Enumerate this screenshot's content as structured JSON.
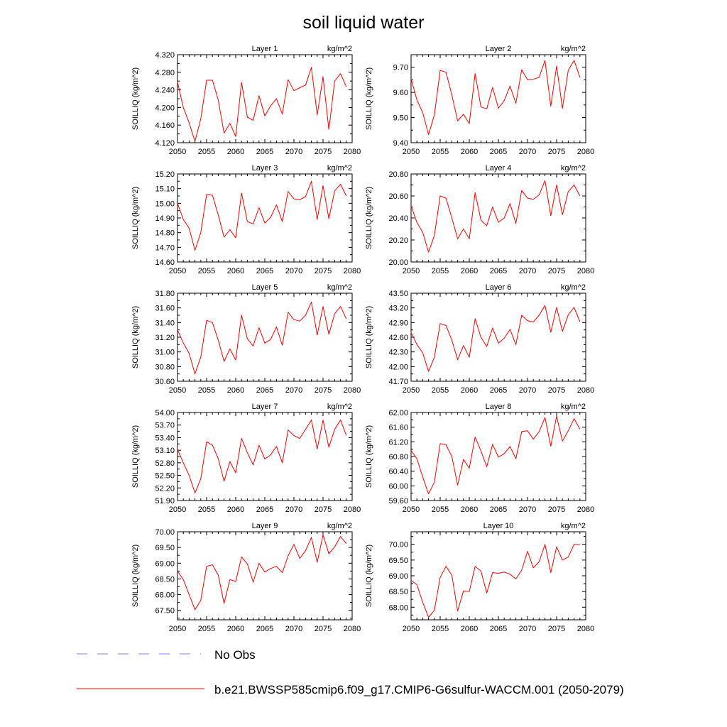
{
  "figure": {
    "title": "soil liquid water"
  },
  "legend": {
    "entries": [
      {
        "label": "No Obs",
        "color": "#7f7fff",
        "style": "dashed"
      },
      {
        "label": "b.e21.BWSSP585cmip6.f09_g17.CMIP6-G6sulfur-WACCM.001 (2050-2079)",
        "color": "#ff0000",
        "style": "solid"
      }
    ]
  },
  "chart_data": [
    {
      "type": "line",
      "title": "Layer 1",
      "units": "kg/m^2",
      "ylabel": "SOILLIQ  (kg/m^2)",
      "xlim": [
        2050,
        2080
      ],
      "ylim": [
        4.12,
        4.32
      ],
      "yticks": [
        "4.120",
        "4.160",
        "4.200",
        "4.240",
        "4.280",
        "4.320"
      ],
      "xticks": [
        "2050",
        "2055",
        "2060",
        "2065",
        "2070",
        "2075",
        "2080"
      ],
      "series": [
        {
          "name": "b.e21.BWSSP585cmip6.f09_g17.CMIP6-G6sulfur-WACCM.001 (2050-2079)",
          "color": "#ff0000",
          "x": [
            2050,
            2051,
            2052,
            2053,
            2054,
            2055,
            2056,
            2057,
            2058,
            2059,
            2060,
            2061,
            2062,
            2063,
            2064,
            2065,
            2066,
            2067,
            2068,
            2069,
            2070,
            2071,
            2072,
            2073,
            2074,
            2075,
            2076,
            2077,
            2078,
            2079
          ],
          "values": [
            4.258,
            4.2,
            4.165,
            4.123,
            4.174,
            4.262,
            4.262,
            4.217,
            4.142,
            4.164,
            4.134,
            4.257,
            4.178,
            4.171,
            4.227,
            4.181,
            4.204,
            4.22,
            4.185,
            4.263,
            4.238,
            4.245,
            4.251,
            4.291,
            4.183,
            4.27,
            4.15,
            4.26,
            4.277,
            4.247
          ]
        }
      ]
    },
    {
      "type": "line",
      "title": "Layer 2",
      "units": "kg/m^2",
      "ylabel": "SOILLIQ  (kg/m^2)",
      "xlim": [
        2050,
        2080
      ],
      "ylim": [
        9.4,
        9.75
      ],
      "yticks": [
        "9.40",
        "9.50",
        "9.60",
        "9.70"
      ],
      "xticks": [
        "2050",
        "2055",
        "2060",
        "2065",
        "2070",
        "2075",
        "2080"
      ],
      "series": [
        {
          "name": "b.e21.BWSSP585cmip6.f09_g17.CMIP6-G6sulfur-WACCM.001 (2050-2079)",
          "color": "#ff0000",
          "x": [
            2050,
            2051,
            2052,
            2053,
            2054,
            2055,
            2056,
            2057,
            2058,
            2059,
            2060,
            2061,
            2062,
            2063,
            2064,
            2065,
            2066,
            2067,
            2068,
            2069,
            2070,
            2071,
            2072,
            2073,
            2074,
            2075,
            2076,
            2077,
            2078,
            2079
          ],
          "values": [
            9.655,
            9.57,
            9.52,
            9.432,
            9.51,
            9.688,
            9.68,
            9.59,
            9.487,
            9.513,
            9.476,
            9.675,
            9.542,
            9.535,
            9.62,
            9.537,
            9.567,
            9.625,
            9.557,
            9.69,
            9.65,
            9.652,
            9.66,
            9.727,
            9.545,
            9.705,
            9.537,
            9.688,
            9.727,
            9.66
          ]
        }
      ]
    },
    {
      "type": "line",
      "title": "Layer 3",
      "units": "kg/m^2",
      "ylabel": "SOILLIQ  (kg/m^2)",
      "xlim": [
        2050,
        2080
      ],
      "ylim": [
        14.6,
        15.2
      ],
      "yticks": [
        "14.60",
        "14.70",
        "14.80",
        "14.90",
        "15.00",
        "15.10",
        "15.20"
      ],
      "xticks": [
        "2050",
        "2055",
        "2060",
        "2065",
        "2070",
        "2075",
        "2080"
      ],
      "series": [
        {
          "name": "b.e21.BWSSP585cmip6.f09_g17.CMIP6-G6sulfur-WACCM.001 (2050-2079)",
          "color": "#ff0000",
          "x": [
            2050,
            2051,
            2052,
            2053,
            2054,
            2055,
            2056,
            2057,
            2058,
            2059,
            2060,
            2061,
            2062,
            2063,
            2064,
            2065,
            2066,
            2067,
            2068,
            2069,
            2070,
            2071,
            2072,
            2073,
            2074,
            2075,
            2076,
            2077,
            2078,
            2079
          ],
          "values": [
            15.0,
            14.89,
            14.83,
            14.68,
            14.8,
            15.06,
            15.055,
            14.92,
            14.77,
            14.82,
            14.765,
            15.07,
            14.875,
            14.86,
            14.97,
            14.865,
            14.905,
            14.99,
            14.875,
            15.08,
            15.03,
            15.025,
            15.045,
            15.15,
            14.89,
            15.12,
            14.895,
            15.085,
            15.13,
            15.05
          ]
        }
      ]
    },
    {
      "type": "line",
      "title": "Layer 4",
      "units": "kg/m^2",
      "ylabel": "SOILLIQ  (kg/m^2)",
      "xlim": [
        2050,
        2080
      ],
      "ylim": [
        20.0,
        20.8
      ],
      "yticks": [
        "20.00",
        "20.20",
        "20.40",
        "20.60",
        "20.80"
      ],
      "xticks": [
        "2050",
        "2055",
        "2060",
        "2065",
        "2070",
        "2075",
        "2080"
      ],
      "series": [
        {
          "name": "b.e21.BWSSP585cmip6.f09_g17.CMIP6-G6sulfur-WACCM.001 (2050-2079)",
          "color": "#ff0000",
          "x": [
            2050,
            2051,
            2052,
            2053,
            2054,
            2055,
            2056,
            2057,
            2058,
            2059,
            2060,
            2061,
            2062,
            2063,
            2064,
            2065,
            2066,
            2067,
            2068,
            2069,
            2070,
            2071,
            2072,
            2073,
            2074,
            2075,
            2076,
            2077,
            2078,
            2079
          ],
          "values": [
            20.51,
            20.36,
            20.27,
            20.09,
            20.24,
            20.6,
            20.58,
            20.4,
            20.21,
            20.3,
            20.21,
            20.63,
            20.38,
            20.33,
            20.5,
            20.36,
            20.4,
            20.53,
            20.35,
            20.65,
            20.58,
            20.57,
            20.61,
            20.74,
            20.42,
            20.7,
            20.43,
            20.64,
            20.7,
            20.6
          ]
        }
      ]
    },
    {
      "type": "line",
      "title": "Layer 5",
      "units": "kg/m^2",
      "ylabel": "SOILLIQ  (kg/m^2)",
      "xlim": [
        2050,
        2080
      ],
      "ylim": [
        30.6,
        31.8
      ],
      "yticks": [
        "30.60",
        "30.80",
        "31.00",
        "31.20",
        "31.40",
        "31.60",
        "31.80"
      ],
      "xticks": [
        "2050",
        "2055",
        "2060",
        "2065",
        "2070",
        "2075",
        "2080"
      ],
      "series": [
        {
          "name": "b.e21.BWSSP585cmip6.f09_g17.CMIP6-G6sulfur-WACCM.001 (2050-2079)",
          "color": "#ff0000",
          "x": [
            2050,
            2051,
            2052,
            2053,
            2054,
            2055,
            2056,
            2057,
            2058,
            2059,
            2060,
            2061,
            2062,
            2063,
            2064,
            2065,
            2066,
            2067,
            2068,
            2069,
            2070,
            2071,
            2072,
            2073,
            2074,
            2075,
            2076,
            2077,
            2078,
            2079
          ],
          "values": [
            31.3,
            31.12,
            30.98,
            30.7,
            30.93,
            31.43,
            31.4,
            31.16,
            30.87,
            31.04,
            30.89,
            31.5,
            31.18,
            31.08,
            31.33,
            31.12,
            31.17,
            31.34,
            31.09,
            31.54,
            31.44,
            31.42,
            31.5,
            31.68,
            31.23,
            31.62,
            31.24,
            31.52,
            31.62,
            31.45
          ]
        }
      ]
    },
    {
      "type": "line",
      "title": "Layer 6",
      "units": "kg/m^2",
      "ylabel": "SOILLIQ  (kg/m^2)",
      "xlim": [
        2050,
        2080
      ],
      "ylim": [
        41.7,
        43.5
      ],
      "yticks": [
        "41.70",
        "42.00",
        "42.30",
        "42.60",
        "42.90",
        "43.20",
        "43.50"
      ],
      "xticks": [
        "2050",
        "2055",
        "2060",
        "2065",
        "2070",
        "2075",
        "2080"
      ],
      "series": [
        {
          "name": "b.e21.BWSSP585cmip6.f09_g17.CMIP6-G6sulfur-WACCM.001 (2050-2079)",
          "color": "#ff0000",
          "x": [
            2050,
            2051,
            2052,
            2053,
            2054,
            2055,
            2056,
            2057,
            2058,
            2059,
            2060,
            2061,
            2062,
            2063,
            2064,
            2065,
            2066,
            2067,
            2068,
            2069,
            2070,
            2071,
            2072,
            2073,
            2074,
            2075,
            2076,
            2077,
            2078,
            2079
          ],
          "values": [
            42.7,
            42.45,
            42.28,
            41.9,
            42.19,
            42.88,
            42.84,
            42.54,
            42.14,
            42.43,
            42.19,
            42.98,
            42.6,
            42.41,
            42.79,
            42.48,
            42.58,
            42.76,
            42.45,
            43.05,
            42.94,
            42.91,
            43.05,
            43.25,
            42.7,
            43.21,
            42.72,
            43.06,
            43.21,
            42.92
          ]
        }
      ]
    },
    {
      "type": "line",
      "title": "Layer 7",
      "units": "kg/m^2",
      "ylabel": "SOILLIQ  (kg/m^2)",
      "xlim": [
        2050,
        2080
      ],
      "ylim": [
        51.9,
        54.0
      ],
      "yticks": [
        "51.90",
        "52.20",
        "52.50",
        "52.80",
        "53.10",
        "53.40",
        "53.70",
        "54.00"
      ],
      "xticks": [
        "2050",
        "2055",
        "2060",
        "2065",
        "2070",
        "2075",
        "2080"
      ],
      "series": [
        {
          "name": "b.e21.BWSSP585cmip6.f09_g17.CMIP6-G6sulfur-WACCM.001 (2050-2079)",
          "color": "#ff0000",
          "x": [
            2050,
            2051,
            2052,
            2053,
            2054,
            2055,
            2056,
            2057,
            2058,
            2059,
            2060,
            2061,
            2062,
            2063,
            2064,
            2065,
            2066,
            2067,
            2068,
            2069,
            2070,
            2071,
            2072,
            2073,
            2074,
            2075,
            2076,
            2077,
            2078,
            2079
          ],
          "values": [
            53.12,
            52.8,
            52.5,
            52.08,
            52.42,
            53.3,
            53.22,
            52.9,
            52.36,
            52.83,
            52.56,
            53.38,
            53.04,
            52.75,
            53.22,
            52.89,
            52.99,
            53.19,
            52.8,
            53.58,
            53.45,
            53.38,
            53.6,
            53.82,
            53.13,
            53.82,
            53.17,
            53.6,
            53.82,
            53.45
          ]
        }
      ]
    },
    {
      "type": "line",
      "title": "Layer 8",
      "units": "kg/m^2",
      "ylabel": "SOILLIQ  (kg/m^2)",
      "xlim": [
        2050,
        2080
      ],
      "ylim": [
        59.6,
        62.0
      ],
      "yticks": [
        "59.60",
        "60.00",
        "60.40",
        "60.80",
        "61.20",
        "61.60",
        "62.00"
      ],
      "xticks": [
        "2050",
        "2055",
        "2060",
        "2065",
        "2070",
        "2075",
        "2080"
      ],
      "series": [
        {
          "name": "b.e21.BWSSP585cmip6.f09_g17.CMIP6-G6sulfur-WACCM.001 (2050-2079)",
          "color": "#ff0000",
          "x": [
            2050,
            2051,
            2052,
            2053,
            2054,
            2055,
            2056,
            2057,
            2058,
            2059,
            2060,
            2061,
            2062,
            2063,
            2064,
            2065,
            2066,
            2067,
            2068,
            2069,
            2070,
            2071,
            2072,
            2073,
            2074,
            2075,
            2076,
            2077,
            2078,
            2079
          ],
          "values": [
            60.96,
            60.74,
            60.24,
            59.78,
            60.1,
            61.15,
            61.12,
            60.8,
            60.02,
            60.72,
            60.48,
            61.33,
            60.95,
            60.52,
            61.13,
            60.78,
            60.88,
            61.07,
            60.74,
            61.48,
            61.5,
            61.27,
            61.48,
            61.86,
            61.08,
            61.9,
            61.22,
            61.5,
            61.83,
            61.55
          ]
        }
      ]
    },
    {
      "type": "line",
      "title": "Layer 9",
      "units": "kg/m^2",
      "ylabel": "SOILLIQ  (kg/m^2)",
      "xlim": [
        2050,
        2080
      ],
      "ylim": [
        67.2,
        70.0
      ],
      "yticks": [
        "67.50",
        "68.00",
        "68.50",
        "69.00",
        "69.50",
        "70.00"
      ],
      "xticks": [
        "2050",
        "2055",
        "2060",
        "2065",
        "2070",
        "2075",
        "2080"
      ],
      "series": [
        {
          "name": "b.e21.BWSSP585cmip6.f09_g17.CMIP6-G6sulfur-WACCM.001 (2050-2079)",
          "color": "#ff0000",
          "x": [
            2050,
            2051,
            2052,
            2053,
            2054,
            2055,
            2056,
            2057,
            2058,
            2059,
            2060,
            2061,
            2062,
            2063,
            2064,
            2065,
            2066,
            2067,
            2068,
            2069,
            2070,
            2071,
            2072,
            2073,
            2074,
            2075,
            2076,
            2077,
            2078,
            2079
          ],
          "values": [
            68.75,
            68.48,
            68.0,
            67.52,
            67.82,
            68.9,
            68.95,
            68.62,
            67.72,
            68.48,
            68.42,
            69.2,
            68.98,
            68.4,
            69.0,
            68.72,
            68.83,
            68.9,
            68.7,
            69.24,
            69.6,
            69.15,
            69.4,
            69.82,
            69.03,
            69.9,
            69.3,
            69.52,
            69.85,
            69.62
          ]
        }
      ]
    },
    {
      "type": "line",
      "title": "Layer 10",
      "units": "kg/m^2",
      "ylabel": "SOILLIQ  (kg/m^2)",
      "xlim": [
        2050,
        2080
      ],
      "ylim": [
        67.6,
        70.4
      ],
      "yticks": [
        "68.00",
        "68.50",
        "69.00",
        "69.50",
        "70.00"
      ],
      "xticks": [
        "2050",
        "2055",
        "2060",
        "2065",
        "2070",
        "2075",
        "2080"
      ],
      "series": [
        {
          "name": "b.e21.BWSSP585cmip6.f09_g17.CMIP6-G6sulfur-WACCM.001 (2050-2079)",
          "color": "#ff0000",
          "x": [
            2050,
            2051,
            2052,
            2053,
            2054,
            2055,
            2056,
            2057,
            2058,
            2059,
            2060,
            2061,
            2062,
            2063,
            2064,
            2065,
            2066,
            2067,
            2068,
            2069,
            2070,
            2071,
            2072,
            2073,
            2074,
            2075,
            2076,
            2077,
            2078,
            2079
          ],
          "values": [
            68.85,
            68.72,
            68.15,
            67.68,
            67.9,
            68.95,
            69.3,
            69.02,
            67.88,
            68.52,
            68.5,
            69.3,
            69.15,
            68.45,
            69.1,
            69.08,
            69.12,
            69.05,
            68.9,
            69.18,
            69.78,
            69.25,
            69.45,
            70.0,
            69.1,
            69.92,
            69.5,
            69.6,
            70.0,
            69.98
          ]
        }
      ]
    }
  ]
}
